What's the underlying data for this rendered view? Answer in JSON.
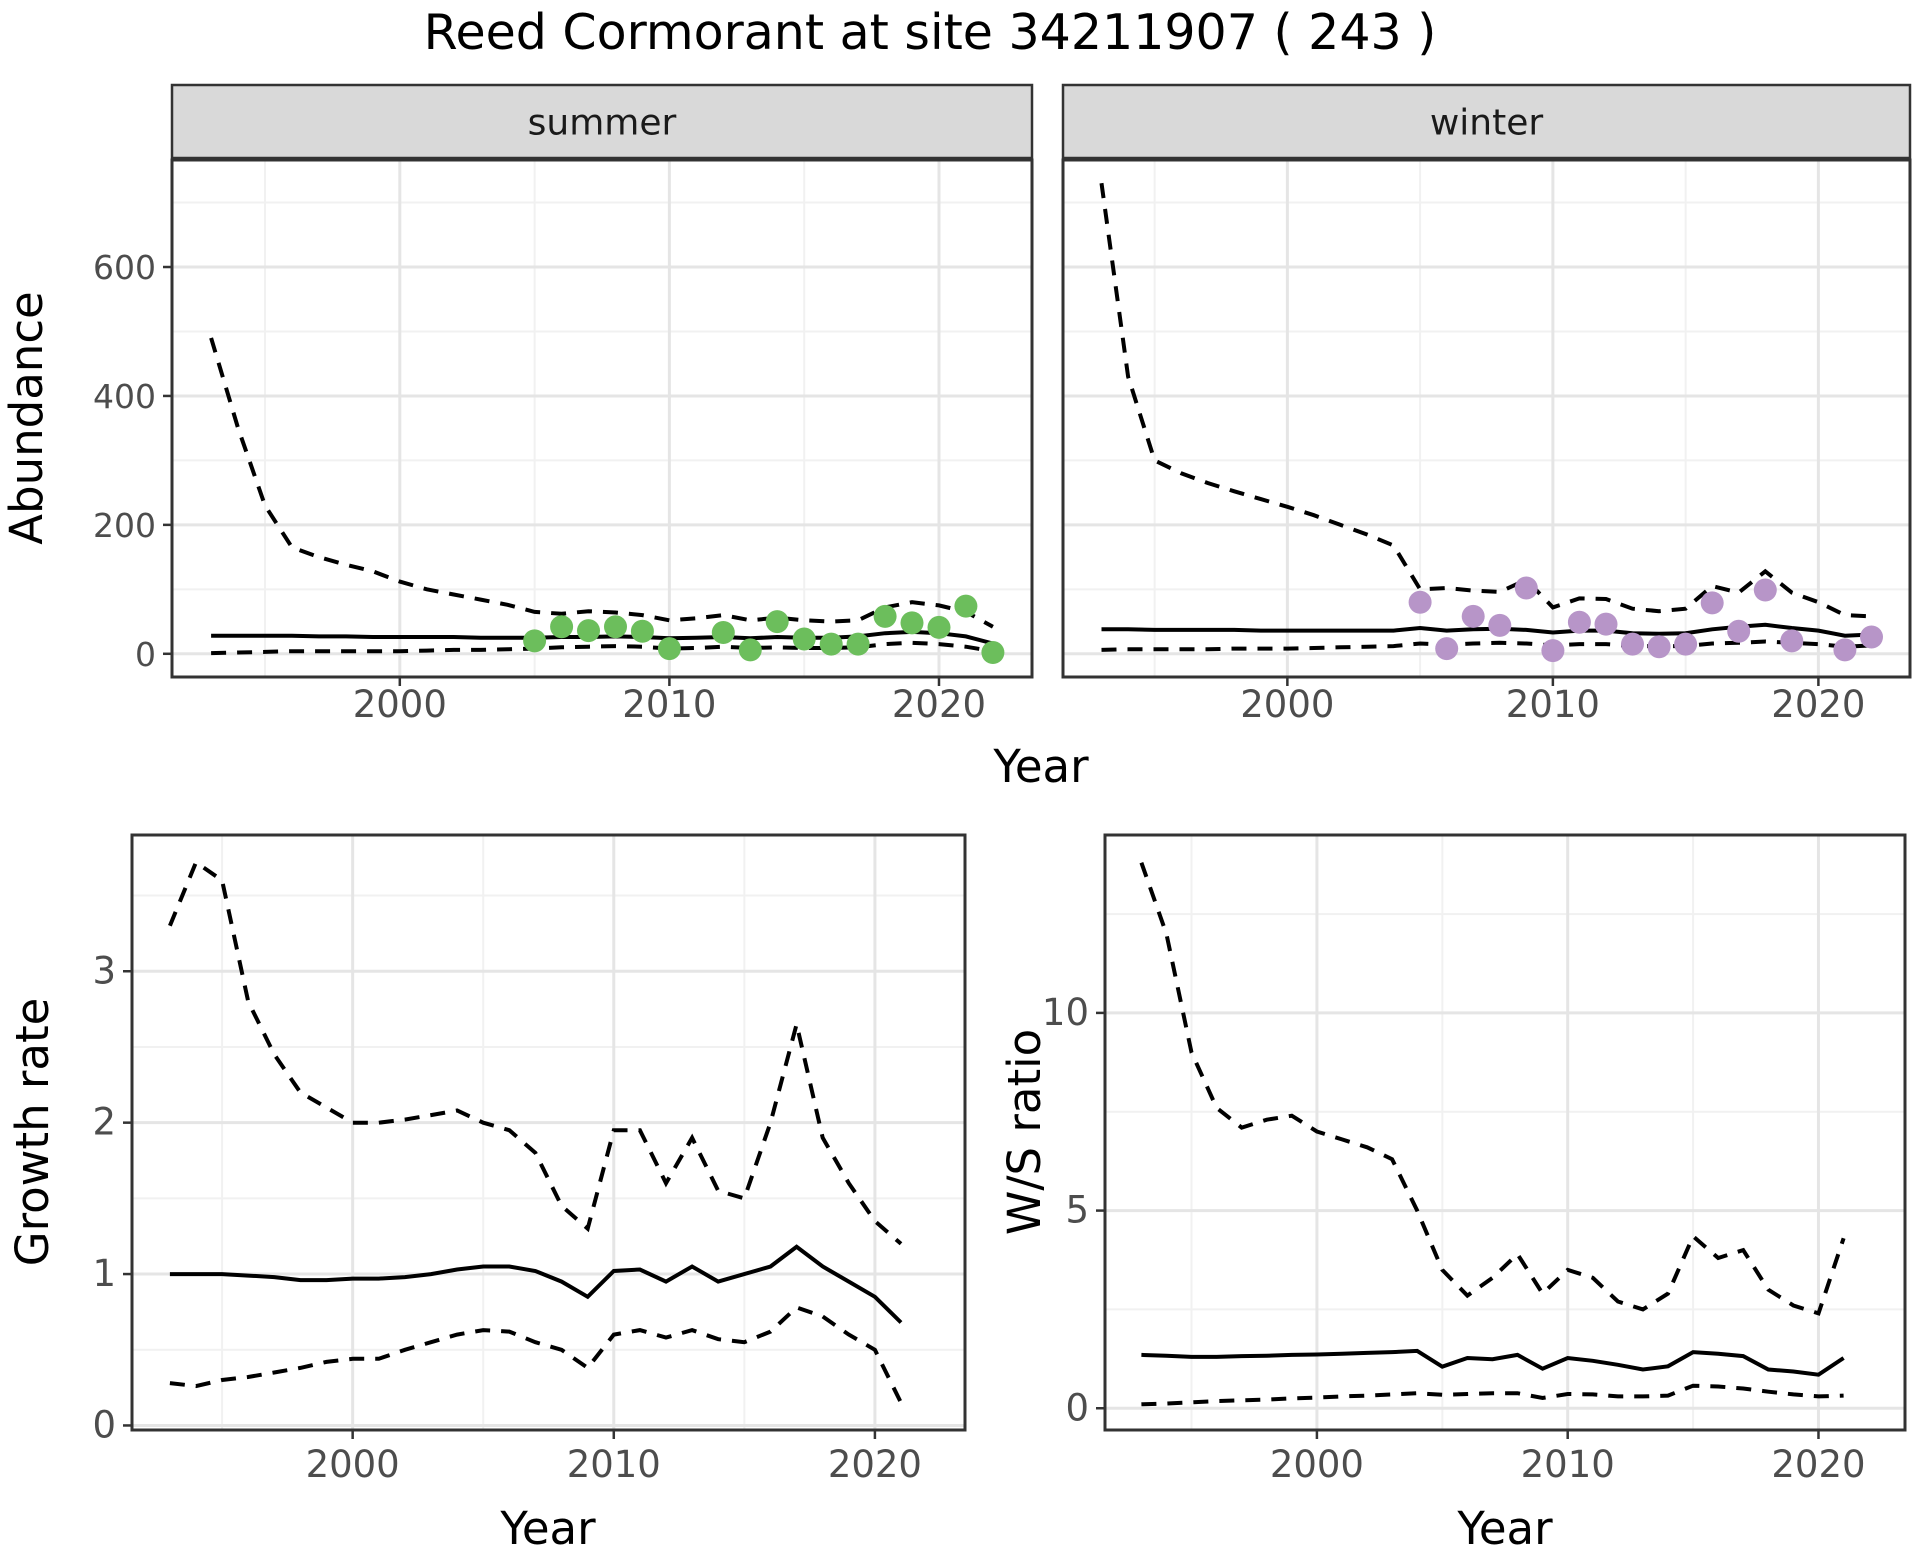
{
  "title": "Reed Cormorant at site 34211907 ( 243 )",
  "theme": {
    "background": "#FFFFFF",
    "panel_border": "#333333",
    "grid_major": "#E5E5E5",
    "grid_minor": "#F1F1F1",
    "strip_fill": "#D9D9D9",
    "strip_text": "#1A1A1A",
    "tick_text": "#4D4D4D",
    "axis_title_text": "#000000",
    "line_color": "#000000",
    "summer_point_color": "#6CBE5C",
    "winter_point_color": "#B795C8"
  },
  "chart_data": [
    {
      "id": "abundance-summer",
      "type": "line",
      "facet_label": "summer",
      "ylabel": "Abundance",
      "xlabel": "Year",
      "xlim": [
        1991.55,
        2023.45
      ],
      "ylim": [
        -36,
        766
      ],
      "x_ticks": [
        2000,
        2010,
        2020
      ],
      "x_tick_labels": [
        "2000",
        "2010",
        "2020"
      ],
      "y_ticks": [
        0,
        200,
        400,
        600
      ],
      "y_tick_labels": [
        "0",
        "200",
        "400",
        "600"
      ],
      "years": [
        1993,
        1994,
        1995,
        1996,
        1997,
        1998,
        1999,
        2000,
        2001,
        2002,
        2003,
        2004,
        2005,
        2006,
        2007,
        2008,
        2009,
        2010,
        2011,
        2012,
        2013,
        2014,
        2015,
        2016,
        2017,
        2018,
        2019,
        2020,
        2021,
        2022
      ],
      "series": [
        {
          "name": "upper-ci",
          "style": "dashed",
          "values": [
            490,
            350,
            230,
            165,
            150,
            138,
            128,
            112,
            100,
            92,
            84,
            76,
            65,
            62,
            66,
            64,
            60,
            52,
            55,
            60,
            52,
            56,
            52,
            50,
            52,
            72,
            80,
            75,
            65,
            42
          ]
        },
        {
          "name": "median",
          "style": "solid",
          "values": [
            28,
            28,
            28,
            28,
            27,
            27,
            26,
            26,
            26,
            26,
            25,
            25,
            25,
            26,
            26,
            27,
            26,
            24,
            25,
            26,
            24,
            26,
            25,
            25,
            27,
            32,
            34,
            32,
            27,
            16
          ]
        },
        {
          "name": "lower-ci",
          "style": "dashed",
          "values": [
            1,
            2,
            3,
            4,
            4,
            4,
            4,
            4,
            5,
            6,
            6,
            7,
            8,
            10,
            11,
            12,
            11,
            8,
            9,
            11,
            9,
            10,
            9,
            9,
            10,
            15,
            17,
            15,
            11,
            4
          ]
        }
      ],
      "points": {
        "name": "observed-count",
        "color": "#6CBE5C",
        "years": [
          2005,
          2006,
          2007,
          2008,
          2009,
          2010,
          2012,
          2013,
          2014,
          2015,
          2016,
          2017,
          2018,
          2019,
          2020,
          2021,
          2022
        ],
        "values": [
          20,
          42,
          36,
          42,
          35,
          8,
          33,
          6,
          50,
          23,
          15,
          15,
          58,
          48,
          41,
          74,
          2
        ]
      }
    },
    {
      "id": "abundance-winter",
      "type": "line",
      "facet_label": "winter",
      "xlabel": "Year",
      "xlim": [
        1991.55,
        2023.45
      ],
      "ylim": [
        -36,
        766
      ],
      "x_ticks": [
        2000,
        2010,
        2020
      ],
      "x_tick_labels": [
        "2000",
        "2010",
        "2020"
      ],
      "y_ticks": [
        0,
        200,
        400,
        600
      ],
      "y_tick_labels": [
        "0",
        "200",
        "400",
        "600"
      ],
      "years": [
        1993,
        1994,
        1995,
        1996,
        1997,
        1998,
        1999,
        2000,
        2001,
        2002,
        2003,
        2004,
        2005,
        2006,
        2007,
        2008,
        2009,
        2010,
        2011,
        2012,
        2013,
        2014,
        2015,
        2016,
        2017,
        2018,
        2019,
        2020,
        2021,
        2022
      ],
      "series": [
        {
          "name": "upper-ci",
          "style": "dashed",
          "values": [
            730,
            430,
            300,
            280,
            265,
            252,
            240,
            228,
            215,
            200,
            185,
            168,
            100,
            102,
            98,
            96,
            115,
            72,
            86,
            85,
            70,
            66,
            70,
            105,
            95,
            128,
            95,
            80,
            60,
            58
          ]
        },
        {
          "name": "median",
          "style": "solid",
          "values": [
            38,
            38,
            37,
            37,
            37,
            37,
            36,
            36,
            36,
            36,
            36,
            36,
            40,
            36,
            38,
            39,
            37,
            33,
            36,
            36,
            32,
            31,
            32,
            38,
            42,
            45,
            40,
            36,
            28,
            30
          ]
        },
        {
          "name": "lower-ci",
          "style": "dashed",
          "values": [
            6,
            7,
            7,
            7,
            7,
            8,
            8,
            8,
            9,
            10,
            11,
            12,
            16,
            14,
            16,
            17,
            16,
            13,
            15,
            15,
            12,
            12,
            12,
            16,
            17,
            19,
            17,
            15,
            11,
            13
          ]
        }
      ],
      "points": {
        "name": "observed-count",
        "color": "#B795C8",
        "years": [
          2005,
          2006,
          2007,
          2008,
          2009,
          2010,
          2011,
          2012,
          2013,
          2014,
          2015,
          2016,
          2017,
          2018,
          2019,
          2021,
          2022
        ],
        "values": [
          80,
          8,
          58,
          44,
          102,
          5,
          49,
          46,
          15,
          11,
          15,
          79,
          35,
          99,
          20,
          6,
          26
        ]
      }
    },
    {
      "id": "growth-rate",
      "type": "line",
      "ylabel": "Growth rate",
      "xlabel": "Year",
      "xlim": [
        1991.55,
        2023.45
      ],
      "ylim": [
        -0.03,
        3.9
      ],
      "x_ticks": [
        2000,
        2010,
        2020
      ],
      "x_tick_labels": [
        "2000",
        "2010",
        "2020"
      ],
      "y_ticks": [
        0,
        1,
        2,
        3
      ],
      "y_tick_labels": [
        "0",
        "1",
        "2",
        "3"
      ],
      "years": [
        1993,
        1994,
        1995,
        1996,
        1997,
        1998,
        1999,
        2000,
        2001,
        2002,
        2003,
        2004,
        2005,
        2006,
        2007,
        2008,
        2009,
        2010,
        2011,
        2012,
        2013,
        2014,
        2015,
        2016,
        2017,
        2018,
        2019,
        2020,
        2021
      ],
      "series": [
        {
          "name": "upper-ci",
          "style": "dashed",
          "values": [
            3.3,
            3.72,
            3.6,
            2.8,
            2.45,
            2.2,
            2.1,
            2.0,
            2.0,
            2.02,
            2.05,
            2.08,
            2.0,
            1.95,
            1.8,
            1.45,
            1.3,
            1.95,
            1.95,
            1.6,
            1.9,
            1.55,
            1.5,
            2.0,
            2.65,
            1.9,
            1.6,
            1.35,
            1.2
          ]
        },
        {
          "name": "median",
          "style": "solid",
          "values": [
            1.0,
            1.0,
            1.0,
            0.99,
            0.98,
            0.96,
            0.96,
            0.97,
            0.97,
            0.98,
            1.0,
            1.03,
            1.05,
            1.05,
            1.02,
            0.95,
            0.85,
            1.02,
            1.03,
            0.95,
            1.05,
            0.95,
            1.0,
            1.05,
            1.18,
            1.05,
            0.95,
            0.85,
            0.68
          ]
        },
        {
          "name": "lower-ci",
          "style": "dashed",
          "values": [
            0.28,
            0.26,
            0.3,
            0.32,
            0.35,
            0.38,
            0.42,
            0.44,
            0.44,
            0.5,
            0.55,
            0.6,
            0.63,
            0.62,
            0.55,
            0.5,
            0.38,
            0.6,
            0.63,
            0.58,
            0.63,
            0.57,
            0.55,
            0.62,
            0.78,
            0.72,
            0.6,
            0.5,
            0.15
          ]
        }
      ]
    },
    {
      "id": "ws-ratio",
      "type": "line",
      "ylabel": "W/S ratio",
      "xlabel": "Year",
      "xlim": [
        1991.55,
        2023.45
      ],
      "ylim": [
        -0.55,
        14.5
      ],
      "x_ticks": [
        2000,
        2010,
        2020
      ],
      "x_tick_labels": [
        "2000",
        "2010",
        "2020"
      ],
      "y_ticks": [
        0,
        5,
        10
      ],
      "y_tick_labels": [
        "0",
        "5",
        "10"
      ],
      "years": [
        1993,
        1994,
        1995,
        1996,
        1997,
        1998,
        1999,
        2000,
        2001,
        2002,
        2003,
        2004,
        2005,
        2006,
        2007,
        2008,
        2009,
        2010,
        2011,
        2012,
        2013,
        2014,
        2015,
        2016,
        2017,
        2018,
        2019,
        2020,
        2021
      ],
      "series": [
        {
          "name": "upper-ci",
          "style": "dashed",
          "values": [
            13.8,
            12.0,
            9.0,
            7.6,
            7.1,
            7.3,
            7.4,
            7.0,
            6.8,
            6.6,
            6.3,
            5.0,
            3.5,
            2.85,
            3.3,
            3.9,
            2.9,
            3.5,
            3.3,
            2.7,
            2.5,
            2.9,
            4.35,
            3.8,
            4.0,
            3.0,
            2.6,
            2.4,
            4.3
          ]
        },
        {
          "name": "median",
          "style": "solid",
          "values": [
            1.35,
            1.33,
            1.3,
            1.3,
            1.32,
            1.33,
            1.35,
            1.36,
            1.38,
            1.4,
            1.42,
            1.45,
            1.05,
            1.27,
            1.24,
            1.35,
            1.0,
            1.27,
            1.2,
            1.1,
            0.98,
            1.06,
            1.42,
            1.38,
            1.32,
            0.98,
            0.93,
            0.85,
            1.27
          ]
        },
        {
          "name": "lower-ci",
          "style": "dashed",
          "values": [
            0.1,
            0.12,
            0.15,
            0.18,
            0.2,
            0.22,
            0.25,
            0.27,
            0.3,
            0.32,
            0.35,
            0.38,
            0.34,
            0.36,
            0.38,
            0.38,
            0.26,
            0.36,
            0.35,
            0.3,
            0.3,
            0.32,
            0.57,
            0.55,
            0.5,
            0.42,
            0.35,
            0.3,
            0.32
          ]
        }
      ]
    }
  ]
}
